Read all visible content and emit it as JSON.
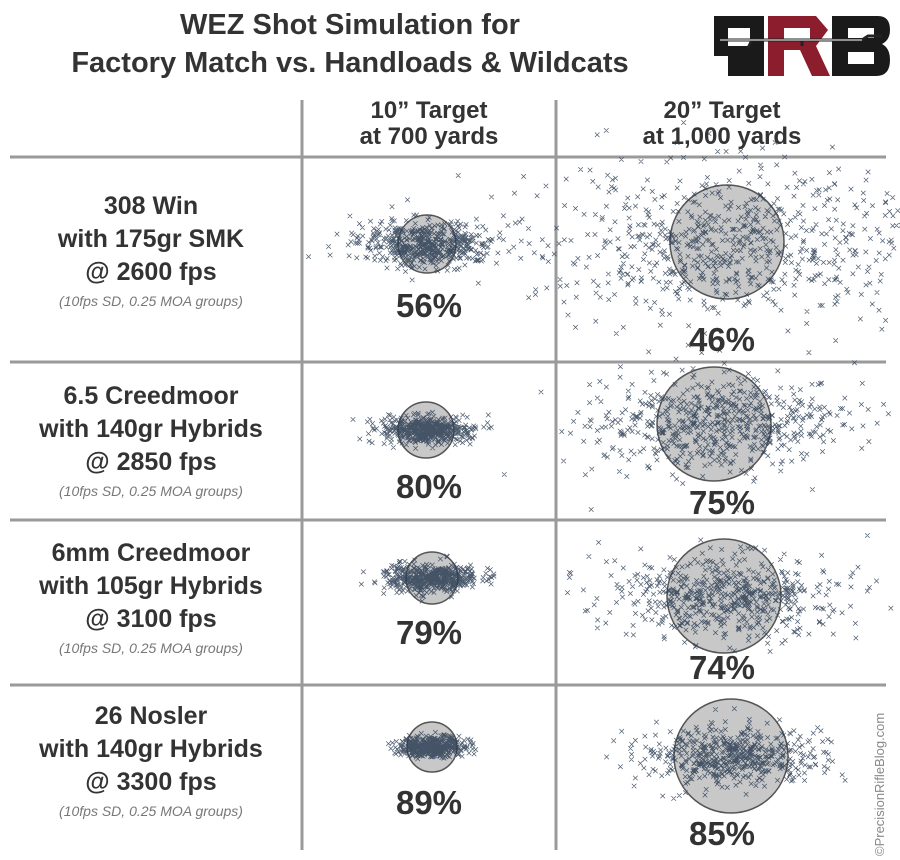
{
  "title": {
    "line1": "WEZ Shot Simulation for",
    "line2": "Factory Match vs. Handloads & Wildcats"
  },
  "logo": {
    "text": "PRB",
    "colors": {
      "dark": "#1a1a1a",
      "red": "#8b1d2c"
    }
  },
  "columns": [
    {
      "line1": "10” Target",
      "line2": "at 700 yards"
    },
    {
      "line1": "20” Target",
      "line2": "at 1,000 yards"
    }
  ],
  "colors": {
    "marker": "#2d3e55",
    "target_fill": "#c8c8c8",
    "target_stroke": "#555555",
    "grid": "#9a9a9a"
  },
  "chart_data": {
    "type": "scatter",
    "title": "WEZ Shot Simulation for Factory Match vs. Handloads & Wildcats",
    "x_categories": [
      "10” Target at 700 yards",
      "20” Target at 1,000 yards"
    ],
    "rows": [
      {
        "cartridge": "308 Win",
        "bullet": "with 175gr SMK",
        "velocity": "@ 2600 fps",
        "note": "(10fps SD, 0.25 MOA groups)",
        "hits": [
          {
            "target": "10” Target at 700 yards",
            "target_diameter_in": 10,
            "hit_pct_label": "56%",
            "hit_pct": 56
          },
          {
            "target": "20” Target at 1,000 yards",
            "target_diameter_in": 20,
            "hit_pct_label": "46%",
            "hit_pct": 46
          }
        ]
      },
      {
        "cartridge": "6.5 Creedmoor",
        "bullet": "with 140gr Hybrids",
        "velocity": "@ 2850 fps",
        "note": "(10fps SD, 0.25 MOA groups)",
        "hits": [
          {
            "target": "10” Target at 700 yards",
            "target_diameter_in": 10,
            "hit_pct_label": "80%",
            "hit_pct": 80
          },
          {
            "target": "20” Target at 1,000 yards",
            "target_diameter_in": 20,
            "hit_pct_label": "75%",
            "hit_pct": 75
          }
        ]
      },
      {
        "cartridge": "6mm Creedmoor",
        "bullet": "with 105gr Hybrids",
        "velocity": "@ 3100 fps",
        "note": "(10fps SD, 0.25 MOA groups)",
        "hits": [
          {
            "target": "10” Target at 700 yards",
            "target_diameter_in": 10,
            "hit_pct_label": "79%",
            "hit_pct": 79
          },
          {
            "target": "20” Target at 1,000 yards",
            "target_diameter_in": 20,
            "hit_pct_label": "74%",
            "hit_pct": 74
          }
        ]
      },
      {
        "cartridge": "26 Nosler",
        "bullet": "with 140gr Hybrids",
        "velocity": "@ 3300 fps",
        "note": "(10fps SD, 0.25 MOA groups)",
        "hits": [
          {
            "target": "10” Target at 700 yards",
            "target_diameter_in": 10,
            "hit_pct_label": "89%",
            "hit_pct": 89
          },
          {
            "target": "20” Target at 1,000 yards",
            "target_diameter_in": 20,
            "hit_pct_label": "85%",
            "hit_pct": 85
          }
        ]
      }
    ]
  },
  "copyright": "©PrecisionRifleBlog.com"
}
